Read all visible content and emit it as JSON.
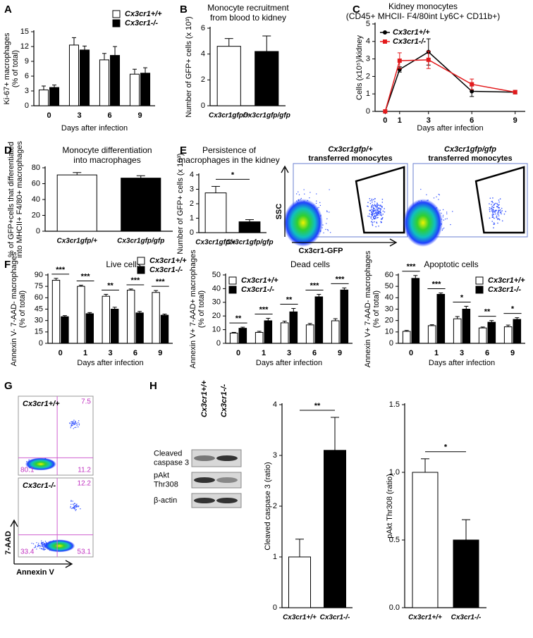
{
  "chart_data": [
    {
      "type": "bar",
      "panel": "A",
      "ylabel": [
        "Ki-67+ macrophages",
        "(% of total)"
      ],
      "xlabel": "Days after infection",
      "categories": [
        "0",
        "3",
        "6",
        "9"
      ],
      "series": [
        {
          "name": "Cx3cr1+/+",
          "color": "#ffffff",
          "values": [
            3.2,
            12.3,
            9.3,
            6.4
          ],
          "errors": [
            0.8,
            1.5,
            1.3,
            1.0
          ]
        },
        {
          "name": "Cx3cr1-/-",
          "color": "#000000",
          "values": [
            3.7,
            11.3,
            10.2,
            6.6
          ],
          "errors": [
            0.5,
            0.8,
            1.8,
            1.1
          ]
        }
      ],
      "ylim": [
        0,
        15
      ],
      "yticks": [
        0,
        3,
        6,
        9,
        12,
        15
      ],
      "legend": "top-right"
    },
    {
      "type": "bar",
      "panel": "B",
      "title": [
        "Monocyte recruitment",
        "from blood to kidney"
      ],
      "ylabel": [
        "Number of GFP+ cells (x 10³)"
      ],
      "categories": [
        "Cx3cr1gfp/+",
        "Cx3cr1gfp/gfp"
      ],
      "values": [
        4.6,
        4.2
      ],
      "errors": [
        0.6,
        1.2
      ],
      "colors": [
        "#ffffff",
        "#000000"
      ],
      "ylim": [
        0,
        6
      ],
      "yticks": [
        0,
        2,
        4,
        6
      ]
    },
    {
      "type": "line",
      "panel": "C",
      "title": [
        "Kidney monocytes",
        "(CD45+ MHCII- F4/80int Ly6C+ CD11b+)"
      ],
      "ylabel": [
        "Cells (x10⁵)/kidney"
      ],
      "xlabel": "Days after infection",
      "x": [
        0,
        1,
        3,
        6,
        9
      ],
      "series": [
        {
          "name": "Cx3cr1+/+",
          "color": "#000000",
          "values": [
            0,
            2.4,
            3.4,
            1.15,
            1.1
          ],
          "errors": [
            0,
            0.15,
            0.75,
            0.3,
            0.1
          ]
        },
        {
          "name": "Cx3cr1-/-",
          "color": "#e31a1c",
          "values": [
            0,
            2.9,
            2.95,
            1.55,
            1.1
          ],
          "errors": [
            0,
            0.45,
            0.5,
            0.3,
            0.1
          ]
        }
      ],
      "xlim": [
        -0.7,
        9.7
      ],
      "xticks": [
        0,
        1,
        3,
        6,
        9
      ],
      "ylim": [
        0,
        5
      ],
      "yticks": [
        0,
        1,
        2,
        3,
        4,
        5
      ],
      "legend": "top-left"
    },
    {
      "type": "bar",
      "panel": "D",
      "title": [
        "Monocyte differentiation",
        "into macrophages"
      ],
      "ylabel": [
        "% of GFP+cells that differentiated",
        "into MHCII+ F4/80+ macrophages"
      ],
      "categories": [
        "Cx3cr1gfp/+",
        "Cx3cr1gfp/gfp"
      ],
      "values": [
        71,
        67
      ],
      "errors": [
        3,
        3
      ],
      "colors": [
        "#ffffff",
        "#000000"
      ],
      "ylim": [
        0,
        80
      ],
      "yticks": [
        0,
        20,
        40,
        60,
        80
      ]
    },
    {
      "type": "bar",
      "panel": "E",
      "title": [
        "Persistence of",
        "macrophages in the kidney"
      ],
      "ylabel": [
        "Number of GFP+ cells (x 10³)"
      ],
      "categories": [
        "Cx3cr1gfp/+",
        "Cx3cr1gfp/gfp"
      ],
      "values": [
        2.75,
        0.75
      ],
      "errors": [
        0.45,
        0.15
      ],
      "colors": [
        "#ffffff",
        "#000000"
      ],
      "significance": "*",
      "ylim": [
        0,
        4
      ],
      "yticks": [
        0,
        1,
        2,
        3,
        4
      ]
    },
    {
      "type": "bar",
      "panel": "F",
      "title": [
        "Live cells"
      ],
      "ylabel": [
        "Annexin V- 7-AAD- macrophages",
        "(% of total)"
      ],
      "xlabel": "Days after infection",
      "categories": [
        "0",
        "1",
        "3",
        "6",
        "9"
      ],
      "series": [
        {
          "name": "Cx3cr1+/+",
          "color": "#ffffff",
          "values": [
            83,
            75,
            62,
            70,
            67
          ],
          "errors": [
            2.5,
            1.5,
            2.5,
            1.5,
            2.5
          ]
        },
        {
          "name": "Cx3cr1-/-",
          "color": "#000000",
          "values": [
            35,
            39,
            45,
            40,
            37
          ],
          "errors": [
            1.5,
            1.5,
            2.5,
            2,
            1.5
          ]
        }
      ],
      "significance": [
        "***",
        "***",
        "**",
        "***",
        "***"
      ],
      "ylim": [
        0,
        90
      ],
      "yticks": [
        0,
        15,
        30,
        45,
        60,
        75,
        90
      ],
      "legend": "top-right"
    },
    {
      "type": "bar",
      "title": [
        "Dead cells"
      ],
      "ylabel": [
        "Annexin V+ 7-AAD+ macrophages",
        "(% of total)"
      ],
      "xlabel": "Days after infection",
      "categories": [
        "0",
        "1",
        "3",
        "6",
        "9"
      ],
      "series": [
        {
          "name": "Cx3cr1+/+",
          "color": "#ffffff",
          "values": [
            7.5,
            8,
            15,
            13.5,
            16.5
          ],
          "errors": [
            0.5,
            0.8,
            1.2,
            1,
            1.5
          ]
        },
        {
          "name": "Cx3cr1-/-",
          "color": "#000000",
          "values": [
            11,
            16.5,
            23,
            34,
            39
          ],
          "errors": [
            0.8,
            1.8,
            2.5,
            1.8,
            1.5
          ]
        }
      ],
      "significance": [
        "**",
        "***",
        "**",
        "***",
        "***"
      ],
      "ylim": [
        0,
        50
      ],
      "yticks": [
        0,
        10,
        20,
        30,
        40,
        50
      ],
      "legend": "top-left"
    },
    {
      "type": "bar",
      "title": [
        "Apoptotic cells"
      ],
      "ylabel": [
        "Annexin V+ 7-AAD- macrophages",
        "(% of total)"
      ],
      "xlabel": "Days after infection",
      "categories": [
        "0",
        "1",
        "3",
        "6",
        "9"
      ],
      "series": [
        {
          "name": "Cx3cr1+/+",
          "color": "#ffffff",
          "values": [
            10.5,
            15.5,
            21.5,
            13.5,
            14.5
          ],
          "errors": [
            0.8,
            0.8,
            2,
            0.8,
            1.5
          ]
        },
        {
          "name": "Cx3cr1-/-",
          "color": "#000000",
          "values": [
            57,
            43,
            30,
            18.5,
            21
          ],
          "errors": [
            2.5,
            1.2,
            2.5,
            1.5,
            1.5
          ]
        }
      ],
      "significance": [
        "***",
        "***",
        "*",
        "**",
        "*"
      ],
      "ylim": [
        0,
        60
      ],
      "yticks": [
        0,
        10,
        20,
        30,
        40,
        50,
        60
      ],
      "legend": "top-right"
    },
    {
      "type": "bar",
      "ylabel": [
        "Cleaved caspase 3 (ratio)"
      ],
      "categories": [
        "Cx3cr1+/+",
        "Cx3cr1-/-"
      ],
      "values": [
        1.0,
        3.1
      ],
      "errors": [
        0.35,
        0.65
      ],
      "colors": [
        "#ffffff",
        "#000000"
      ],
      "significance": "**",
      "ylim": [
        0,
        4
      ],
      "yticks": [
        0,
        1,
        2,
        3,
        4
      ]
    },
    {
      "type": "bar",
      "ylabel": [
        "pAkt Thr308 (ratio)"
      ],
      "categories": [
        "Cx3cr1+/+",
        "Cx3cr1-/-"
      ],
      "values": [
        1.0,
        0.5
      ],
      "errors": [
        0.1,
        0.15
      ],
      "colors": [
        "#ffffff",
        "#000000"
      ],
      "significance": "*",
      "ylim": [
        0,
        1.5
      ],
      "yticks": [
        {
          "value": 0,
          "label": "0.0"
        },
        0.5,
        {
          "value": 1,
          "label": "1.0"
        },
        1.5
      ]
    }
  ],
  "flow_E": {
    "plots": [
      {
        "label": [
          "Cx3cr1gfp/+",
          "transferred monocytes"
        ]
      },
      {
        "label": [
          "Cx3cr1gfp/gfp",
          "transferred monocytes"
        ]
      }
    ],
    "ylabel": "SSC",
    "xlabel": "Cx3cr1-GFP"
  },
  "flow_G": {
    "panel": "G",
    "plots": [
      {
        "label": "Cx3cr1+/+",
        "quadrants": [
          7.5,
          80.1,
          11.2
        ]
      },
      {
        "label": "Cx3cr1-/-",
        "quadrants": [
          12.2,
          33.4,
          53.1
        ]
      }
    ],
    "ylabel": "7-AAD",
    "xlabel": "Annexin V"
  },
  "blot_H": {
    "panel": "H",
    "columns": [
      "Cx3cr1+/+",
      "Cx3cr1-/-"
    ],
    "rows": [
      [
        "Cleaved",
        "caspase 3"
      ],
      [
        "pAkt",
        "Thr308"
      ],
      [
        "β-actin"
      ]
    ]
  }
}
